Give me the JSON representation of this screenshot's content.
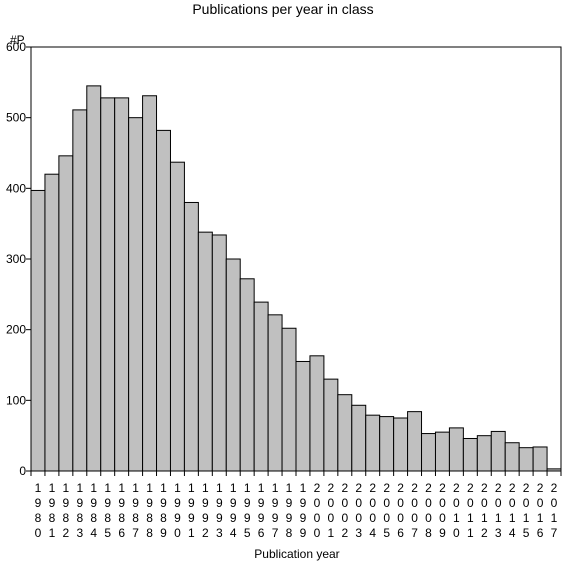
{
  "chart_data": {
    "type": "bar",
    "title": "Publications per year in class",
    "ylabel": "#P",
    "xlabel": "Publication year",
    "ylim": [
      0,
      600
    ],
    "yticks": [
      0,
      100,
      200,
      300,
      400,
      500,
      600
    ],
    "grid": false,
    "legend": "none",
    "categories": [
      "1980",
      "1981",
      "1982",
      "1983",
      "1984",
      "1985",
      "1986",
      "1987",
      "1988",
      "1989",
      "1990",
      "1991",
      "1992",
      "1993",
      "1994",
      "1995",
      "1996",
      "1997",
      "1998",
      "1999",
      "2000",
      "2001",
      "2002",
      "2003",
      "2004",
      "2005",
      "2006",
      "2007",
      "2008",
      "2009",
      "2010",
      "2011",
      "2012",
      "2013",
      "2014",
      "2015",
      "2016",
      "2017"
    ],
    "values": [
      397,
      420,
      446,
      511,
      545,
      528,
      528,
      500,
      531,
      482,
      437,
      380,
      338,
      334,
      300,
      272,
      239,
      221,
      202,
      155,
      163,
      130,
      108,
      93,
      79,
      77,
      75,
      84,
      53,
      55,
      61,
      46,
      50,
      56,
      40,
      33,
      34,
      3
    ],
    "bar_color": "#c0c0c0",
    "bar_edge_color": "#000000"
  }
}
